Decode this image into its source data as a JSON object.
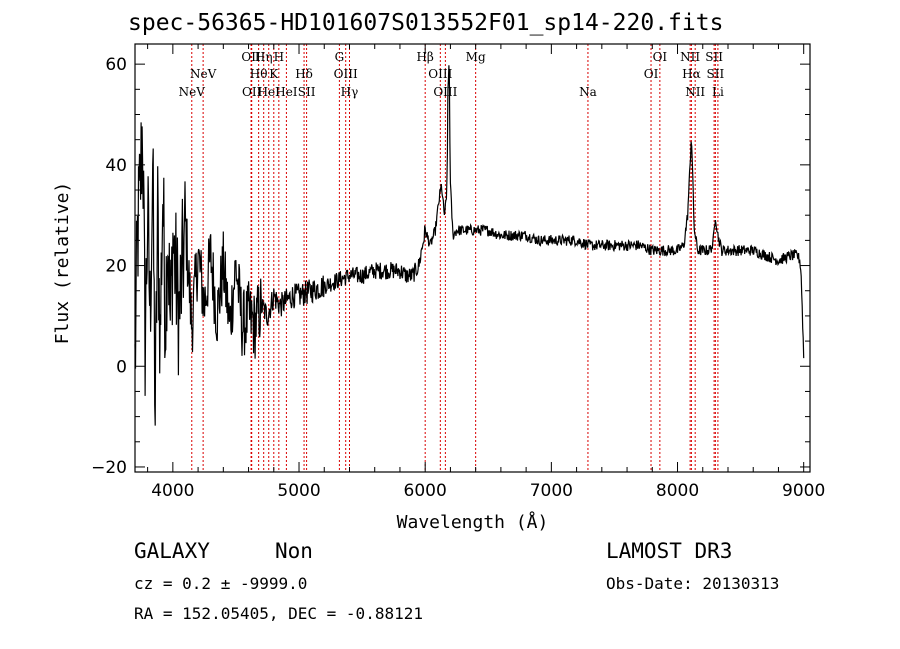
{
  "chart_data": {
    "type": "line",
    "title": "spec-56365-HD101607S013552F01_sp14-220.fits",
    "xlabel": "Wavelength (Å)",
    "ylabel": "Flux (relative)",
    "xlim": [
      3700,
      9050
    ],
    "ylim": [
      -21,
      64
    ],
    "xticks": [
      4000,
      5000,
      6000,
      7000,
      8000,
      9000
    ],
    "yticks": [
      -20,
      0,
      20,
      40,
      60
    ],
    "grid": false,
    "series": [
      {
        "x": [
          3700,
          3720,
          3740,
          3760,
          3780,
          3800,
          3820,
          3840,
          3860,
          3880,
          3900,
          3920,
          3940,
          3960,
          3980,
          4000,
          4050,
          4100,
          4150,
          4200,
          4250,
          4300,
          4350,
          4400,
          4450,
          4500,
          4550,
          4600,
          4650,
          4700,
          4750,
          4800,
          4850,
          4900,
          4950,
          5000,
          5100,
          5200,
          5300,
          5400,
          5500,
          5600,
          5700,
          5800,
          5850,
          5900,
          5950,
          6000,
          6040,
          6080,
          6110,
          6130,
          6150,
          6170,
          6180,
          6190,
          6200,
          6220,
          6250,
          6300,
          6400,
          6500,
          6600,
          6700,
          6800,
          6900,
          7000,
          7100,
          7200,
          7300,
          7400,
          7500,
          7600,
          7700,
          7800,
          7900,
          8000,
          8050,
          8080,
          8100,
          8110,
          8120,
          8130,
          8140,
          8160,
          8200,
          8250,
          8280,
          8300,
          8320,
          8350,
          8400,
          8500,
          8600,
          8700,
          8800,
          8900,
          8950,
          8970,
          8980,
          8990,
          9000
        ],
        "y": [
          0,
          25,
          35,
          48,
          5,
          30,
          10,
          40,
          -10,
          30,
          5,
          35,
          10,
          28,
          8,
          25,
          10,
          28,
          8,
          22,
          12,
          22,
          10,
          20,
          8,
          20,
          8,
          10,
          8,
          12,
          10,
          14,
          12,
          13,
          14,
          14,
          15,
          16,
          17,
          18,
          18,
          19,
          19,
          19,
          18,
          18,
          20,
          27,
          24,
          27,
          33,
          36,
          30,
          33,
          52,
          62,
          36,
          26,
          27,
          27,
          27,
          27,
          26,
          26,
          26,
          25,
          25,
          25,
          25,
          24,
          24,
          24,
          24,
          24,
          23,
          23,
          23,
          24,
          30,
          40,
          46,
          38,
          28,
          26,
          23,
          23,
          23,
          24,
          30,
          26,
          23,
          23,
          23,
          23,
          22,
          21,
          22,
          22,
          21,
          18,
          10,
          2
        ]
      }
    ],
    "lines": [
      {
        "x": 4150,
        "label": "NeV",
        "row": 3
      },
      {
        "x": 4240,
        "label": "NeV",
        "row": 2
      },
      {
        "x": 4620,
        "label": "OII",
        "row": 1
      },
      {
        "x": 4625,
        "label": "OII",
        "row": 3
      },
      {
        "x": 4680,
        "label": "Hθ",
        "row": 2
      },
      {
        "x": 4720,
        "label": "Hη",
        "row": 1
      },
      {
        "x": 4760,
        "label": "HeI",
        "row": 3
      },
      {
        "x": 4840,
        "label": "H",
        "row": 1
      },
      {
        "x": 4800,
        "label": "K",
        "row": 2
      },
      {
        "x": 4900,
        "label": "HeI",
        "row": 3
      },
      {
        "x": 5040,
        "label": "Hδ",
        "row": 2
      },
      {
        "x": 5060,
        "label": "SII",
        "row": 3
      },
      {
        "x": 5320,
        "label": "G",
        "row": 1
      },
      {
        "x": 5370,
        "label": "OIII",
        "row": 2
      },
      {
        "x": 5400,
        "label": "Hγ",
        "row": 3
      },
      {
        "x": 6000,
        "label": "Hβ",
        "row": 1
      },
      {
        "x": 6120,
        "label": "OIII",
        "row": 2
      },
      {
        "x": 6160,
        "label": "OIII",
        "row": 3
      },
      {
        "x": 6400,
        "label": "Mg",
        "row": 1
      },
      {
        "x": 7290,
        "label": "Na",
        "row": 3
      },
      {
        "x": 7790,
        "label": "OI",
        "row": 2
      },
      {
        "x": 7860,
        "label": "OI",
        "row": 1
      },
      {
        "x": 8100,
        "label": "NII",
        "row": 1
      },
      {
        "x": 8110,
        "label": "Hα",
        "row": 2
      },
      {
        "x": 8140,
        "label": "NII",
        "row": 3
      },
      {
        "x": 8290,
        "label": "SII",
        "row": 1
      },
      {
        "x": 8300,
        "label": "SII",
        "row": 2
      },
      {
        "x": 8320,
        "label": "Li",
        "row": 3
      }
    ],
    "line_color": "#d90000",
    "spectrum_color": "#000000"
  },
  "footer": {
    "class_label": "GALAXY",
    "subclass_label": "Non",
    "survey": "LAMOST DR3",
    "cz": "cz = 0.2 ± -9999.0",
    "obs_date": "Obs-Date: 20130313",
    "radec": "RA = 152.05405, DEC =  -0.88121"
  }
}
